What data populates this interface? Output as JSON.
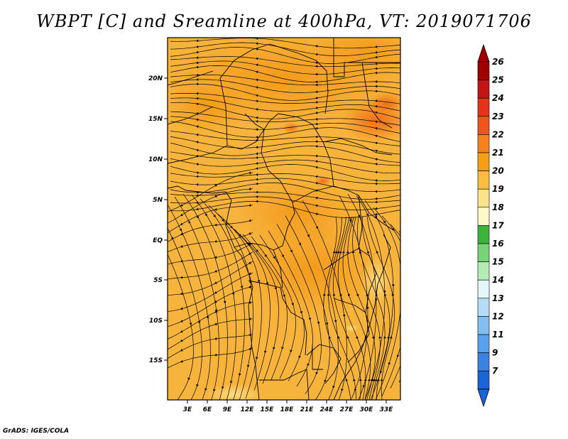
{
  "title": "WBPT [C] and Sreamline at 400hPa, VT: 2019071706",
  "footer": "GrADS: IGES/COLA",
  "map": {
    "lat_labels": [
      "20N",
      "15N",
      "10N",
      "5N",
      "EQ",
      "5S",
      "10S",
      "15S"
    ],
    "lon_labels": [
      "3E",
      "6E",
      "9E",
      "12E",
      "15E",
      "18E",
      "21E",
      "24E",
      "27E",
      "30E",
      "33E"
    ],
    "field_colors": {
      "base": "#f7b43d",
      "warm": "#f39a1a",
      "hot": "#f06a14",
      "cool": "#fbd05e"
    },
    "streamline_color": "#000000"
  },
  "colorbar": {
    "labels": [
      "26",
      "25",
      "24",
      "23",
      "22",
      "21",
      "20",
      "19",
      "18",
      "17",
      "16",
      "15",
      "14",
      "13",
      "12",
      "11",
      "9",
      "7"
    ],
    "colors": [
      "#a00000",
      "#c51414",
      "#e63218",
      "#f0551e",
      "#f5821e",
      "#f5a014",
      "#fbbe3c",
      "#fde28c",
      "#fff8c8",
      "#3cb43c",
      "#78d278",
      "#b4ebb4",
      "#e6f5fa",
      "#b4dcf5",
      "#82bef0",
      "#5aa0eb",
      "#3c82e1",
      "#1e64d7"
    ]
  }
}
